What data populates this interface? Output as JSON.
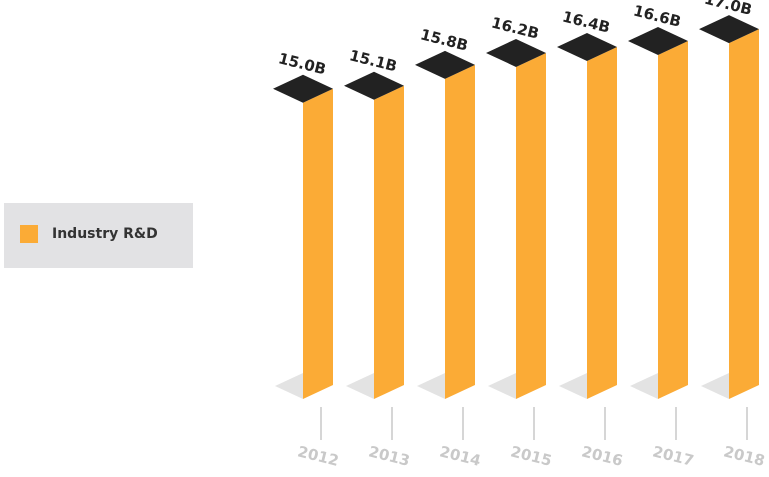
{
  "chart_data": {
    "type": "bar",
    "categories": [
      "2012",
      "2013",
      "2014",
      "2015",
      "2016",
      "2017",
      "2018"
    ],
    "series": [
      {
        "name": "Industry R&D",
        "values": [
          15.0,
          15.1,
          15.8,
          16.2,
          16.4,
          16.6,
          17.0
        ]
      }
    ],
    "value_labels": [
      "15.0B",
      "15.1B",
      "15.8B",
      "16.2B",
      "16.4B",
      "16.6B",
      "17.0B"
    ],
    "legend_position": "left",
    "grid": false,
    "colors": {
      "bar_front": "#fbab36",
      "bar_top": "#222222",
      "axis": "#c9c9c9"
    }
  },
  "legend": {
    "label": "Industry R&D"
  }
}
